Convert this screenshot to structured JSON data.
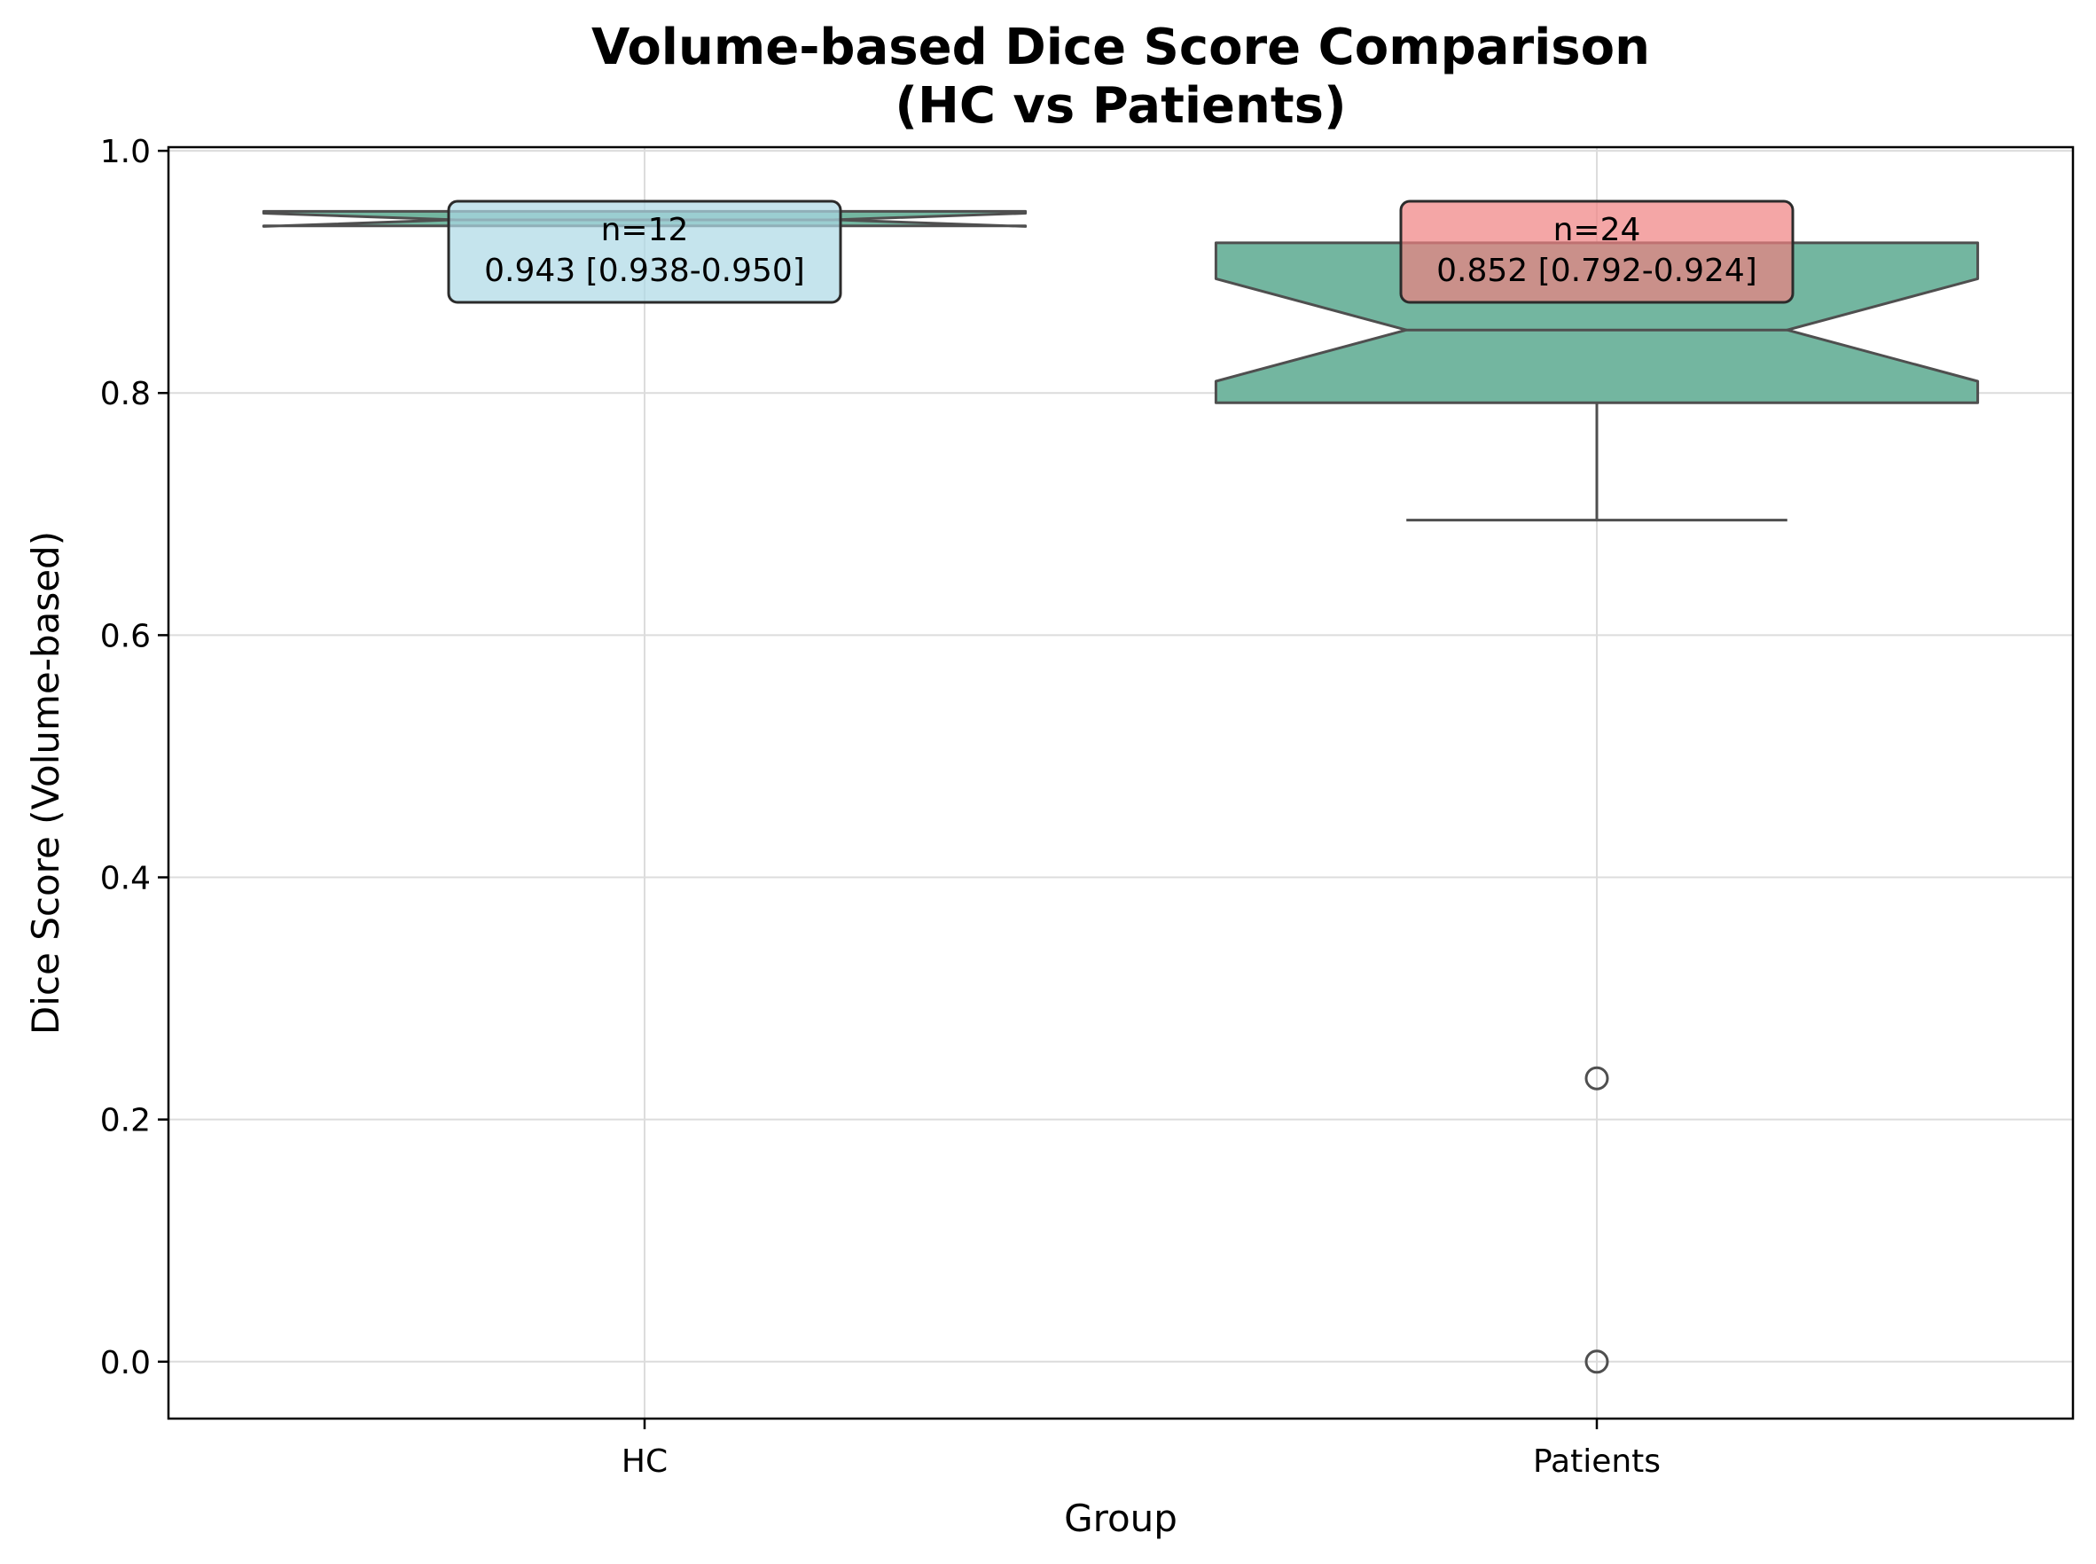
{
  "chart_data": {
    "type": "box",
    "title_lines": [
      "Volume-based Dice Score Comparison",
      "(HC vs Patients)"
    ],
    "xlabel": "Group",
    "ylabel": "Dice Score (Volume-based)",
    "categories": [
      "HC",
      "Patients"
    ],
    "ylim": [
      -0.047,
      1.003
    ],
    "yticks": [
      0.0,
      0.2,
      0.4,
      0.6,
      0.8,
      1.0
    ],
    "ytick_labels": [
      "0.0",
      "0.2",
      "0.4",
      "0.6",
      "0.8",
      "1.0"
    ],
    "grid": true,
    "notched": true,
    "box_color": "#73b6a0",
    "series": [
      {
        "category": "HC",
        "n": 12,
        "median": 0.943,
        "q1": 0.938,
        "q3": 0.95,
        "whisker_low": 0.938,
        "whisker_high": 0.95,
        "outliers": [],
        "annotation_n": "n=12",
        "annotation_stats": "0.943 [0.938-0.950]",
        "annotation_color": "#add8e6"
      },
      {
        "category": "Patients",
        "n": 24,
        "median": 0.852,
        "q1": 0.792,
        "q3": 0.924,
        "whisker_low": 0.695,
        "whisker_high": 0.924,
        "outliers": [
          0.234,
          0.0
        ],
        "annotation_n": "n=24",
        "annotation_stats": "0.852 [0.792-0.924]",
        "annotation_color": "#f08080"
      }
    ]
  }
}
